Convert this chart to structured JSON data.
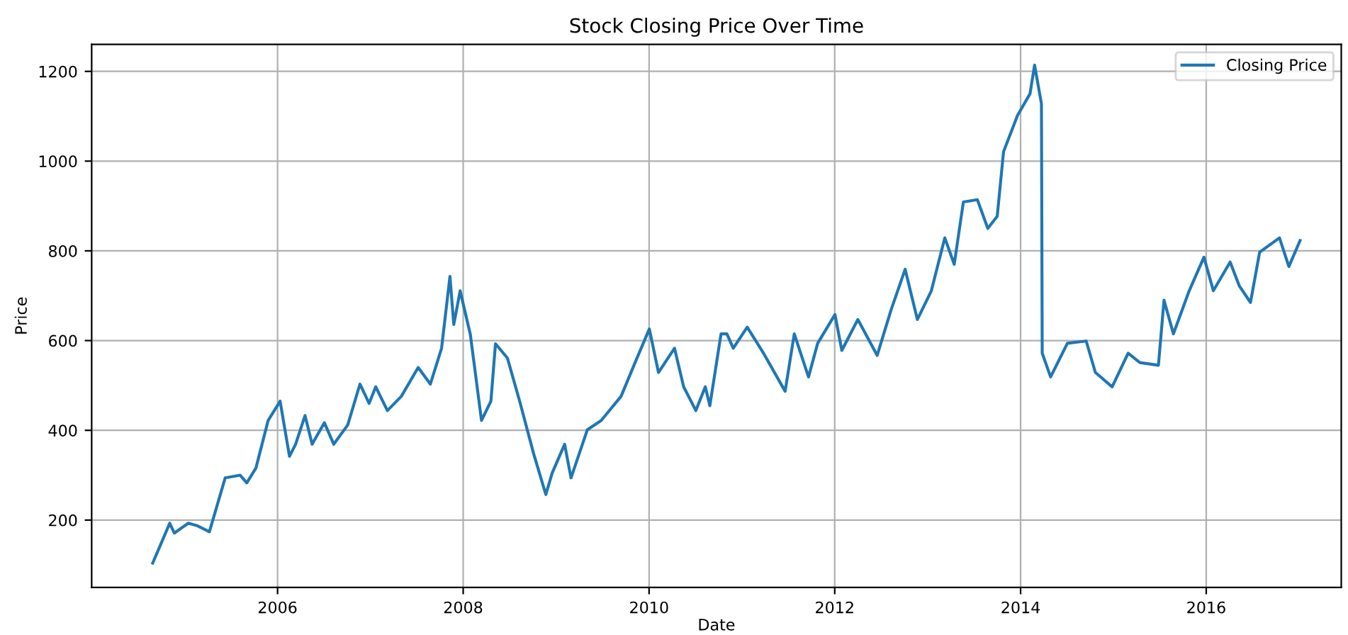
{
  "chart_data": {
    "type": "line",
    "title": "Stock Closing Price Over Time",
    "xlabel": "Date",
    "ylabel": "Price",
    "x": [
      "2004-08-28",
      "2004-11-03",
      "2004-11-21",
      "2005-01-15",
      "2005-02-21",
      "2005-04-08",
      "2005-06-09",
      "2005-08-07",
      "2005-09-02",
      "2005-10-08",
      "2005-11-25",
      "2006-01-11",
      "2006-02-17",
      "2006-03-13",
      "2006-04-19",
      "2006-05-17",
      "2006-07-04",
      "2006-08-10",
      "2006-10-04",
      "2006-11-21",
      "2006-12-27",
      "2007-01-22",
      "2007-03-09",
      "2007-05-03",
      "2007-07-08",
      "2007-08-25",
      "2007-10-08",
      "2007-11-10",
      "2007-11-25",
      "2007-12-20",
      "2008-01-29",
      "2008-03-13",
      "2008-04-19",
      "2008-05-07",
      "2008-06-23",
      "2008-08-10",
      "2008-10-04",
      "2008-11-21",
      "2008-12-16",
      "2009-02-03",
      "2009-02-28",
      "2009-05-03",
      "2009-06-27",
      "2009-09-13",
      "2009-11-07",
      "2010-01-02",
      "2010-02-07",
      "2010-04-11",
      "2010-05-17",
      "2010-07-04",
      "2010-08-10",
      "2010-08-28",
      "2010-10-11",
      "2010-11-03",
      "2010-11-28",
      "2011-01-22",
      "2011-03-27",
      "2011-06-20",
      "2011-07-26",
      "2011-09-20",
      "2011-10-26",
      "2012-01-02",
      "2012-01-29",
      "2012-04-01",
      "2012-06-16",
      "2012-08-10",
      "2012-10-04",
      "2012-11-21",
      "2013-01-15",
      "2013-03-09",
      "2013-04-15",
      "2013-05-21",
      "2013-07-15",
      "2013-08-25",
      "2013-10-01",
      "2013-10-26",
      "2013-12-20",
      "2014-02-07",
      "2014-02-25",
      "2014-03-24",
      "2014-03-27",
      "2014-04-29",
      "2014-07-04",
      "2014-09-16",
      "2014-10-22",
      "2014-12-27",
      "2015-02-28",
      "2015-04-15",
      "2015-06-27",
      "2015-07-19",
      "2015-08-25",
      "2015-10-26",
      "2015-12-23",
      "2016-01-29",
      "2016-04-04",
      "2016-05-10",
      "2016-06-23",
      "2016-07-29",
      "2016-10-15",
      "2016-11-21",
      "2017-01-04"
    ],
    "series": [
      {
        "name": "Closing Price",
        "color": "#1f77b4",
        "values": [
          104,
          193,
          171,
          193,
          187,
          174,
          294,
          300,
          283,
          316,
          422,
          465,
          342,
          369,
          433,
          369,
          417,
          369,
          412,
          503,
          460,
          497,
          444,
          476,
          540,
          503,
          583,
          743,
          636,
          711,
          614,
          422,
          465,
          593,
          561,
          465,
          348,
          257,
          305,
          369,
          294,
          401,
          422,
          476,
          551,
          626,
          529,
          583,
          497,
          444,
          497,
          455,
          615,
          615,
          583,
          630,
          572,
          487,
          615,
          519,
          594,
          658,
          578,
          647,
          567,
          669,
          759,
          647,
          711,
          829,
          770,
          909,
          914,
          850,
          877,
          1021,
          1102,
          1150,
          1214,
          1128,
          572,
          519,
          594,
          599,
          529,
          497,
          572,
          551,
          545,
          690,
          615,
          711,
          786,
          711,
          775,
          722,
          685,
          797,
          829,
          765,
          823
        ]
      }
    ],
    "xlim": [
      "2004-01-01",
      "2017-06-15"
    ],
    "xticks": [
      {
        "value": "2006-01-01",
        "label": "2006"
      },
      {
        "value": "2008-01-01",
        "label": "2008"
      },
      {
        "value": "2010-01-01",
        "label": "2010"
      },
      {
        "value": "2012-01-01",
        "label": "2012"
      },
      {
        "value": "2014-01-01",
        "label": "2014"
      },
      {
        "value": "2016-01-01",
        "label": "2016"
      }
    ],
    "ylim": [
      50,
      1260
    ],
    "yticks": [
      200,
      400,
      600,
      800,
      1000,
      1200
    ],
    "grid": true,
    "legend": "top right",
    "marker": "none",
    "line_style": "solid"
  }
}
